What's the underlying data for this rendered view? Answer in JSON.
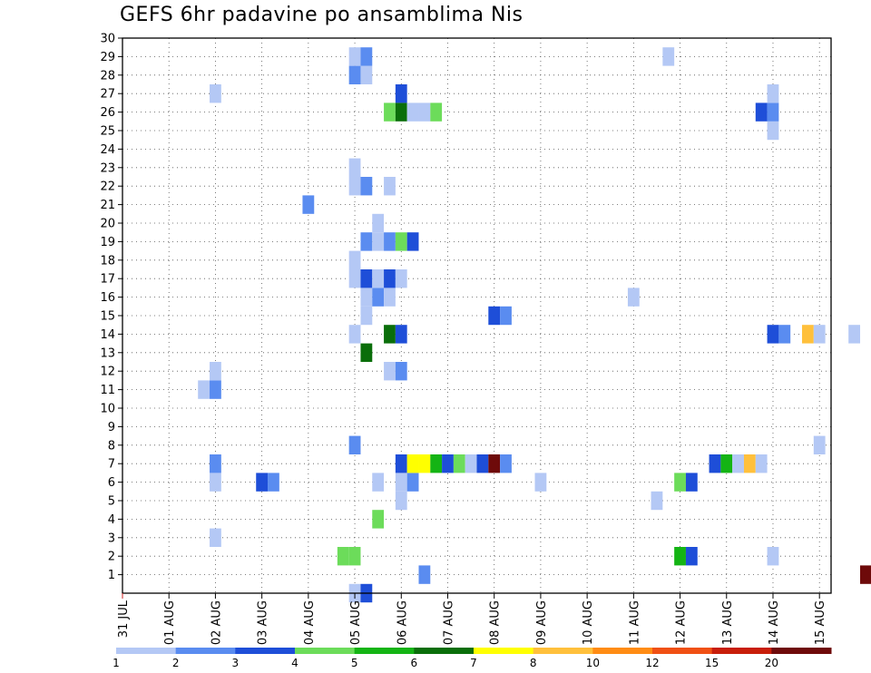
{
  "chart_data": {
    "type": "heatmap",
    "title": "GEFS 6hr padavine po ansamblima Nis",
    "xlabel": "",
    "ylabel": "",
    "x_ticks": [
      "31 JUL",
      "01 AUG",
      "02 AUG",
      "03 AUG",
      "04 AUG",
      "05 AUG",
      "06 AUG",
      "07 AUG",
      "08 AUG",
      "09 AUG",
      "10 AUG",
      "11 AUG",
      "12 AUG",
      "13 AUG",
      "14 AUG",
      "15 AUG"
    ],
    "x_range": [
      "31 JUL 00Z",
      "15 AUG 06Z"
    ],
    "x_step": "6hr",
    "y_ticks": [
      1,
      2,
      3,
      4,
      5,
      6,
      7,
      8,
      9,
      10,
      11,
      12,
      13,
      14,
      15,
      16,
      17,
      18,
      19,
      20,
      21,
      22,
      23,
      24,
      25,
      26,
      27,
      28,
      29,
      30
    ],
    "ylim": [
      0,
      30
    ],
    "grid": true,
    "legend": {
      "placement": "bottom",
      "labels": [
        "1",
        "2",
        "3",
        "4",
        "5",
        "6",
        "7",
        "8",
        "10",
        "12",
        "15",
        "20"
      ],
      "colors": [
        "#b4c8f5",
        "#5a8cf0",
        "#1e4ed8",
        "#6cdc5a",
        "#14b414",
        "#0a6e0a",
        "#ffff00",
        "#ffc03c",
        "#ff8c14",
        "#f05014",
        "#c81e0a",
        "#6e0a0a"
      ]
    },
    "cells": [
      {
        "t": "04 AUG 00Z",
        "m": 0,
        "level": 1
      },
      {
        "t": "04 AUG 06Z",
        "m": 0,
        "level": 3
      },
      {
        "t": "05 AUG 12Z",
        "m": 1,
        "level": 2
      },
      {
        "t": "15 AUG 00Z",
        "m": 1,
        "level": 12
      },
      {
        "t": "03 AUG 18Z",
        "m": 2,
        "level": 4
      },
      {
        "t": "04 AUG 00Z",
        "m": 2,
        "level": 4
      },
      {
        "t": "11 AUG 00Z",
        "m": 2,
        "level": 5
      },
      {
        "t": "11 AUG 06Z",
        "m": 2,
        "level": 3
      },
      {
        "t": "13 AUG 00Z",
        "m": 2,
        "level": 1
      },
      {
        "t": "01 AUG 00Z",
        "m": 3,
        "level": 1
      },
      {
        "t": "04 AUG 12Z",
        "m": 4,
        "level": 4
      },
      {
        "t": "05 AUG 00Z",
        "m": 5,
        "level": 1
      },
      {
        "t": "10 AUG 12Z",
        "m": 5,
        "level": 1
      },
      {
        "t": "01 AUG 00Z",
        "m": 6,
        "level": 1
      },
      {
        "t": "02 AUG 00Z",
        "m": 6,
        "level": 3
      },
      {
        "t": "02 AUG 06Z",
        "m": 6,
        "level": 2
      },
      {
        "t": "04 AUG 12Z",
        "m": 6,
        "level": 1
      },
      {
        "t": "05 AUG 00Z",
        "m": 6,
        "level": 1
      },
      {
        "t": "05 AUG 06Z",
        "m": 6,
        "level": 2
      },
      {
        "t": "08 AUG 00Z",
        "m": 6,
        "level": 1
      },
      {
        "t": "11 AUG 00Z",
        "m": 6,
        "level": 4
      },
      {
        "t": "11 AUG 06Z",
        "m": 6,
        "level": 3
      },
      {
        "t": "01 AUG 00Z",
        "m": 7,
        "level": 2
      },
      {
        "t": "05 AUG 00Z",
        "m": 7,
        "level": 3
      },
      {
        "t": "05 AUG 06Z",
        "m": 7,
        "level": 7
      },
      {
        "t": "05 AUG 12Z",
        "m": 7,
        "level": 7
      },
      {
        "t": "05 AUG 18Z",
        "m": 7,
        "level": 5
      },
      {
        "t": "06 AUG 00Z",
        "m": 7,
        "level": 3
      },
      {
        "t": "06 AUG 06Z",
        "m": 7,
        "level": 4
      },
      {
        "t": "06 AUG 12Z",
        "m": 7,
        "level": 1
      },
      {
        "t": "06 AUG 18Z",
        "m": 7,
        "level": 3
      },
      {
        "t": "07 AUG 00Z",
        "m": 7,
        "level": 12
      },
      {
        "t": "07 AUG 06Z",
        "m": 7,
        "level": 2
      },
      {
        "t": "11 AUG 18Z",
        "m": 7,
        "level": 3
      },
      {
        "t": "12 AUG 00Z",
        "m": 7,
        "level": 5
      },
      {
        "t": "12 AUG 06Z",
        "m": 7,
        "level": 1
      },
      {
        "t": "12 AUG 12Z",
        "m": 7,
        "level": 8
      },
      {
        "t": "12 AUG 18Z",
        "m": 7,
        "level": 1
      },
      {
        "t": "04 AUG 00Z",
        "m": 8,
        "level": 2
      },
      {
        "t": "14 AUG 00Z",
        "m": 8,
        "level": 1
      },
      {
        "t": "00 AUG 18Z",
        "m": 11,
        "level": 1
      },
      {
        "t": "01 AUG 00Z",
        "m": 11,
        "level": 2
      },
      {
        "t": "01 AUG 00Z",
        "m": 12,
        "level": 1
      },
      {
        "t": "04 AUG 18Z",
        "m": 12,
        "level": 1
      },
      {
        "t": "05 AUG 00Z",
        "m": 12,
        "level": 2
      },
      {
        "t": "04 AUG 06Z",
        "m": 13,
        "level": 6
      },
      {
        "t": "04 AUG 00Z",
        "m": 14,
        "level": 1
      },
      {
        "t": "04 AUG 18Z",
        "m": 14,
        "level": 6
      },
      {
        "t": "05 AUG 00Z",
        "m": 14,
        "level": 3
      },
      {
        "t": "13 AUG 00Z",
        "m": 14,
        "level": 3
      },
      {
        "t": "13 AUG 06Z",
        "m": 14,
        "level": 2
      },
      {
        "t": "13 AUG 18Z",
        "m": 14,
        "level": 8
      },
      {
        "t": "14 AUG 00Z",
        "m": 14,
        "level": 1
      },
      {
        "t": "14 AUG 18Z",
        "m": 14,
        "level": 1
      },
      {
        "t": "04 AUG 06Z",
        "m": 15,
        "level": 1
      },
      {
        "t": "07 AUG 00Z",
        "m": 15,
        "level": 3
      },
      {
        "t": "07 AUG 06Z",
        "m": 15,
        "level": 2
      },
      {
        "t": "04 AUG 06Z",
        "m": 16,
        "level": 1
      },
      {
        "t": "04 AUG 12Z",
        "m": 16,
        "level": 2
      },
      {
        "t": "04 AUG 18Z",
        "m": 16,
        "level": 1
      },
      {
        "t": "10 AUG 00Z",
        "m": 16,
        "level": 1
      },
      {
        "t": "04 AUG 00Z",
        "m": 17,
        "level": 1
      },
      {
        "t": "04 AUG 06Z",
        "m": 17,
        "level": 3
      },
      {
        "t": "04 AUG 12Z",
        "m": 17,
        "level": 1
      },
      {
        "t": "04 AUG 18Z",
        "m": 17,
        "level": 3
      },
      {
        "t": "05 AUG 00Z",
        "m": 17,
        "level": 1
      },
      {
        "t": "04 AUG 00Z",
        "m": 18,
        "level": 1
      },
      {
        "t": "04 AUG 06Z",
        "m": 19,
        "level": 2
      },
      {
        "t": "04 AUG 12Z",
        "m": 19,
        "level": 1
      },
      {
        "t": "04 AUG 18Z",
        "m": 19,
        "level": 2
      },
      {
        "t": "05 AUG 00Z",
        "m": 19,
        "level": 4
      },
      {
        "t": "05 AUG 06Z",
        "m": 19,
        "level": 3
      },
      {
        "t": "04 AUG 12Z",
        "m": 20,
        "level": 1
      },
      {
        "t": "03 AUG 00Z",
        "m": 21,
        "level": 2
      },
      {
        "t": "04 AUG 00Z",
        "m": 22,
        "level": 1
      },
      {
        "t": "04 AUG 06Z",
        "m": 22,
        "level": 2
      },
      {
        "t": "04 AUG 18Z",
        "m": 22,
        "level": 1
      },
      {
        "t": "04 AUG 00Z",
        "m": 23,
        "level": 1
      },
      {
        "t": "13 AUG 00Z",
        "m": 25,
        "level": 1
      },
      {
        "t": "04 AUG 18Z",
        "m": 26,
        "level": 4
      },
      {
        "t": "05 AUG 00Z",
        "m": 26,
        "level": 6
      },
      {
        "t": "05 AUG 06Z",
        "m": 26,
        "level": 1
      },
      {
        "t": "05 AUG 12Z",
        "m": 26,
        "level": 1
      },
      {
        "t": "05 AUG 18Z",
        "m": 26,
        "level": 4
      },
      {
        "t": "12 AUG 18Z",
        "m": 26,
        "level": 3
      },
      {
        "t": "13 AUG 00Z",
        "m": 26,
        "level": 2
      },
      {
        "t": "01 AUG 00Z",
        "m": 27,
        "level": 1
      },
      {
        "t": "05 AUG 00Z",
        "m": 27,
        "level": 3
      },
      {
        "t": "13 AUG 00Z",
        "m": 27,
        "level": 1
      },
      {
        "t": "04 AUG 00Z",
        "m": 28,
        "level": 2
      },
      {
        "t": "04 AUG 06Z",
        "m": 28,
        "level": 1
      },
      {
        "t": "04 AUG 00Z",
        "m": 29,
        "level": 1
      },
      {
        "t": "04 AUG 06Z",
        "m": 29,
        "level": 2
      },
      {
        "t": "10 AUG 18Z",
        "m": 29,
        "level": 1
      }
    ]
  }
}
